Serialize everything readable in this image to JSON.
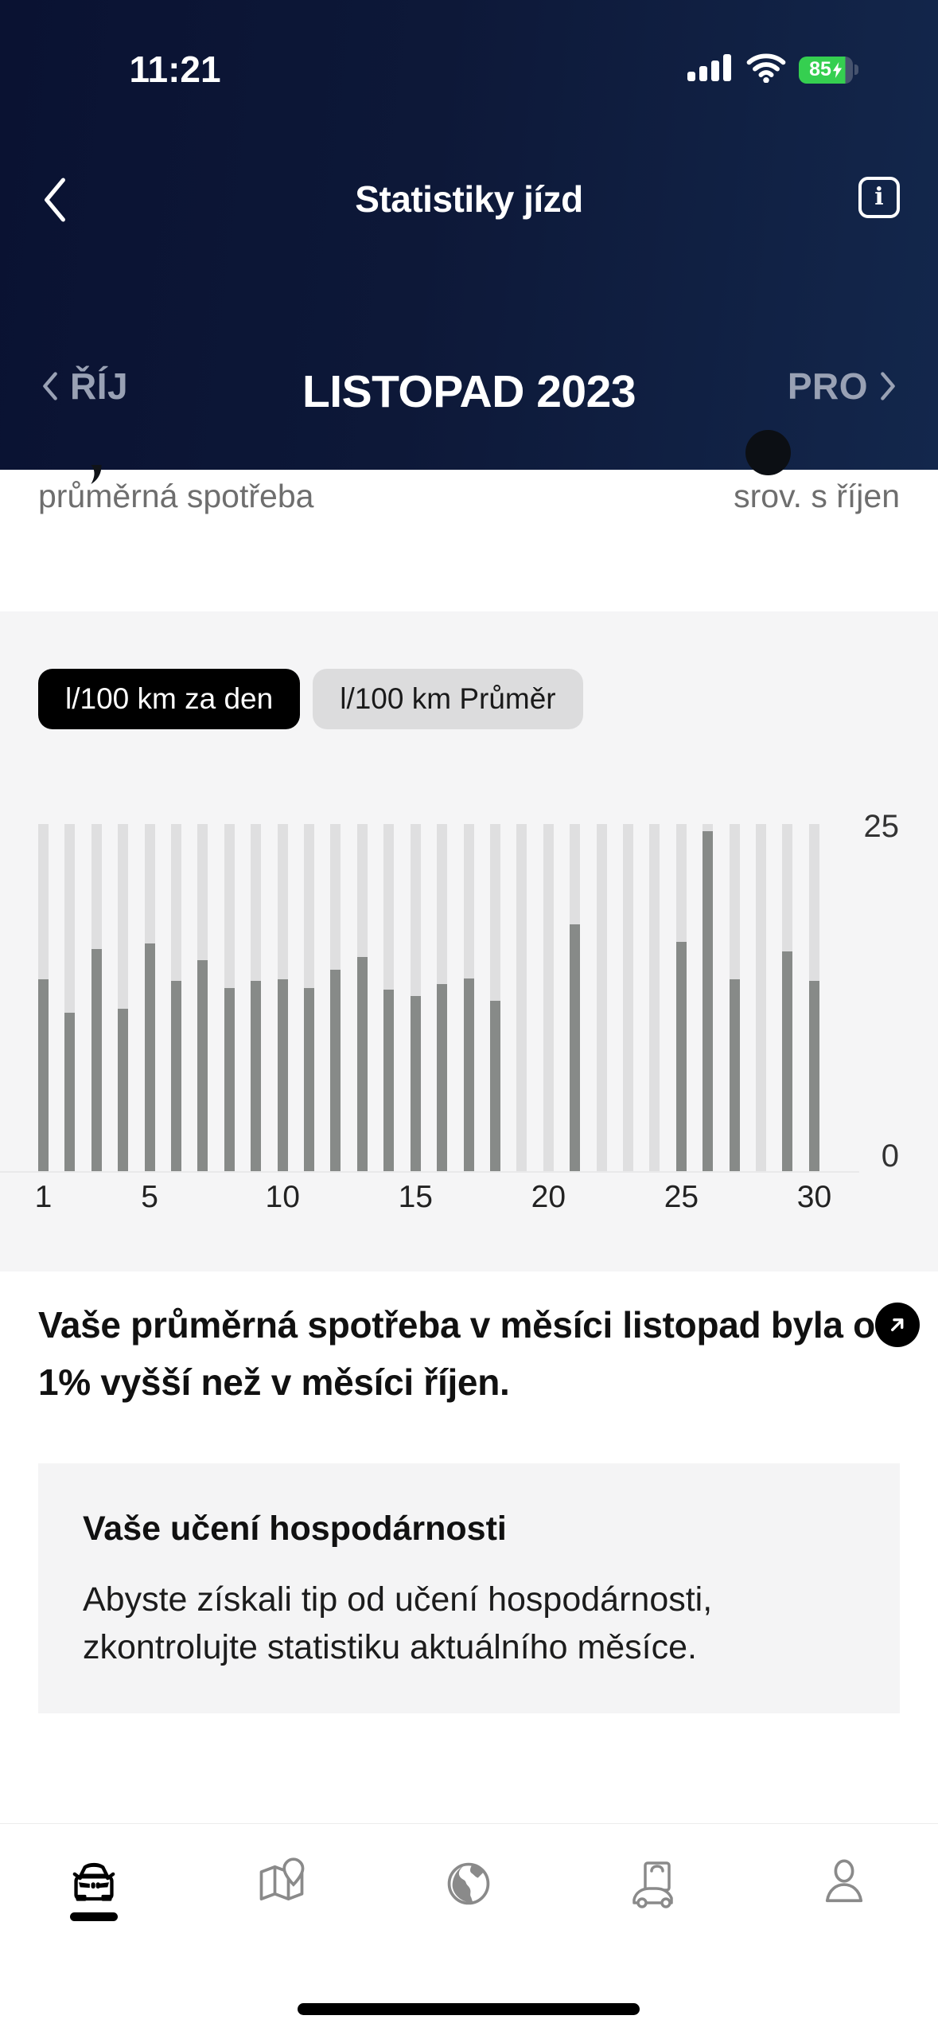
{
  "status_bar": {
    "time": "11:21",
    "battery_percent": "85",
    "charging": true,
    "icons": [
      "cellular-signal-icon",
      "wifi-icon",
      "battery-icon"
    ]
  },
  "nav": {
    "title": "Statistiky jízd",
    "back_icon": "chevron-left",
    "info_glyph": "i"
  },
  "month_selector": {
    "prev_label": "ŘÍJ",
    "current_label": "LISTOPAD 2023",
    "next_label": "PRO"
  },
  "summary": {
    "left_label": "průměrná spotřeba",
    "right_label": "srov. s říjen"
  },
  "toggles": {
    "daily_label": "l/100 km za den",
    "average_label": "l/100 km Průměr"
  },
  "chart_data": {
    "type": "bar",
    "title": "",
    "xlabel": "",
    "ylabel": "",
    "x": [
      1,
      2,
      3,
      4,
      5,
      6,
      7,
      8,
      9,
      10,
      11,
      12,
      13,
      14,
      15,
      16,
      17,
      18,
      19,
      20,
      21,
      22,
      23,
      24,
      25,
      26,
      27,
      28,
      29,
      30
    ],
    "series": [
      {
        "name": "l/100 km za den",
        "values": [
          13.8,
          11.4,
          16.0,
          11.7,
          16.4,
          13.7,
          15.2,
          13.2,
          13.7,
          13.8,
          13.2,
          14.5,
          15.4,
          13.1,
          12.6,
          13.5,
          13.9,
          12.3,
          null,
          null,
          17.8,
          null,
          null,
          null,
          16.5,
          24.5,
          13.8,
          null,
          15.8,
          13.7
        ]
      }
    ],
    "background_track_value": 25,
    "ylim": [
      0,
      25
    ],
    "yticks": [
      0,
      25
    ],
    "xticks": [
      1,
      5,
      10,
      15,
      20,
      25,
      30
    ],
    "grid": false,
    "legend_position": "none",
    "bar_color": "#878a88",
    "track_color": "#dfdfe0"
  },
  "insight": {
    "text_before": "Vaše průměrná spotřeba v měsíci listopad byla o",
    "text_after": "1% vyšší než v měsíci říjen.",
    "arrow_icon": "arrow-up-right-badge"
  },
  "tip_card": {
    "title": "Vaše učení hospodárnosti",
    "body": "Abyste získali tip od učení hospodárnosti, zkontrolujte statistiku aktuálního měsíce."
  },
  "tab_bar": {
    "items": [
      {
        "icon": "car-front-icon",
        "active": true
      },
      {
        "icon": "map-pin-icon",
        "active": false
      },
      {
        "icon": "globe-icon",
        "active": false
      },
      {
        "icon": "store-bag-car-icon",
        "active": false
      },
      {
        "icon": "profile-icon",
        "active": false
      }
    ]
  },
  "colors": {
    "header_gradient_start": "#0a1232",
    "header_gradient_end": "#13274c",
    "section_gray": "#f5f5f6",
    "pill_active_bg": "#000000",
    "pill_inactive_bg": "#dcdcdd",
    "bar_value": "#878a88",
    "bar_track": "#dfdfe0",
    "battery_green": "#35cf50",
    "muted_text": "#6e6e6e"
  }
}
